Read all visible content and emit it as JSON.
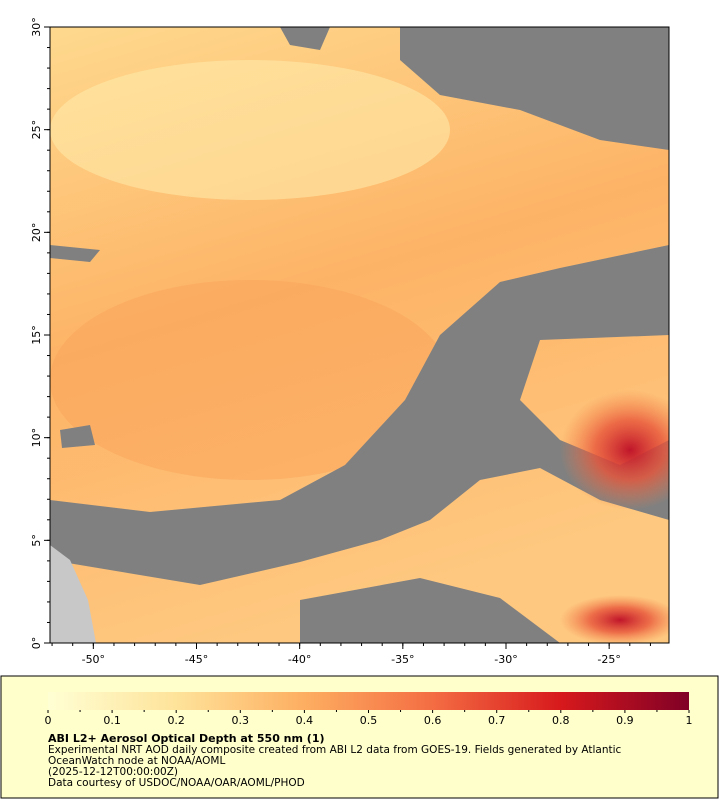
{
  "map": {
    "lon_range": [
      -52.1,
      -22.1
    ],
    "lat_range": [
      0,
      30
    ],
    "lon_ticks": [
      {
        "value": -50,
        "label": "-50°"
      },
      {
        "value": -45,
        "label": "-45°"
      },
      {
        "value": -40,
        "label": "-40°"
      },
      {
        "value": -35,
        "label": "-35°"
      },
      {
        "value": -30,
        "label": "-30°"
      },
      {
        "value": -25,
        "label": "-25°"
      }
    ],
    "lat_ticks": [
      {
        "value": 0,
        "label": "0°"
      },
      {
        "value": 5,
        "label": "5°"
      },
      {
        "value": 10,
        "label": "10°"
      },
      {
        "value": 15,
        "label": "15°"
      },
      {
        "value": 20,
        "label": "20°"
      },
      {
        "value": 25,
        "label": "25°"
      },
      {
        "value": 30,
        "label": "30°"
      }
    ]
  },
  "colorbar": {
    "range": [
      0,
      1
    ],
    "ticks": [
      0,
      0.1,
      0.2,
      0.3,
      0.4,
      0.5,
      0.6,
      0.7,
      0.8,
      0.9,
      1
    ]
  },
  "caption": {
    "title": "ABI L2+ Aerosol Optical Depth at 550 nm (1)",
    "lines": [
      "Experimental NRT AOD daily composite created from ABI L2 data from GOES-19. Fields generated by Atlantic",
      "OceanWatch node at NOAA/AOML",
      "(2025-12-12T00:00:00Z)",
      "Data courtesy of USDOC/NOAA/OAR/AOML/PHOD"
    ]
  }
}
